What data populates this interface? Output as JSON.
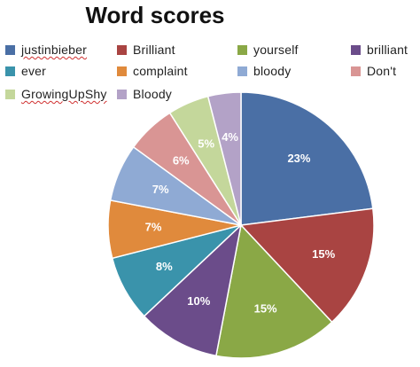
{
  "chart_data": {
    "type": "pie",
    "title": "Word scores",
    "legend_position": "top",
    "slices": [
      {
        "label": "justinbieber",
        "value": 23,
        "display": "23%",
        "color": "#4a6fa5"
      },
      {
        "label": "Brilliant",
        "value": 15,
        "display": "15%",
        "color": "#a94442"
      },
      {
        "label": "yourself",
        "value": 15,
        "display": "15%",
        "color": "#8aa846"
      },
      {
        "label": "brilliant",
        "value": 10,
        "display": "10%",
        "color": "#6b4c8a"
      },
      {
        "label": "ever",
        "value": 8,
        "display": "8%",
        "color": "#3a93ab"
      },
      {
        "label": "complaint",
        "value": 7,
        "display": "7%",
        "color": "#e08a3c"
      },
      {
        "label": "bloody",
        "value": 7,
        "display": "7%",
        "color": "#8faad4"
      },
      {
        "label": "Don't",
        "value": 6,
        "display": "6%",
        "color": "#d99594"
      },
      {
        "label": "GrowingUpShy",
        "value": 5,
        "display": "5%",
        "color": "#c4d79b"
      },
      {
        "label": "Bloody",
        "value": 4,
        "display": "4%",
        "color": "#b3a2c7"
      }
    ],
    "underlined_labels": [
      "justinbieber",
      "GrowingUpShy"
    ]
  }
}
